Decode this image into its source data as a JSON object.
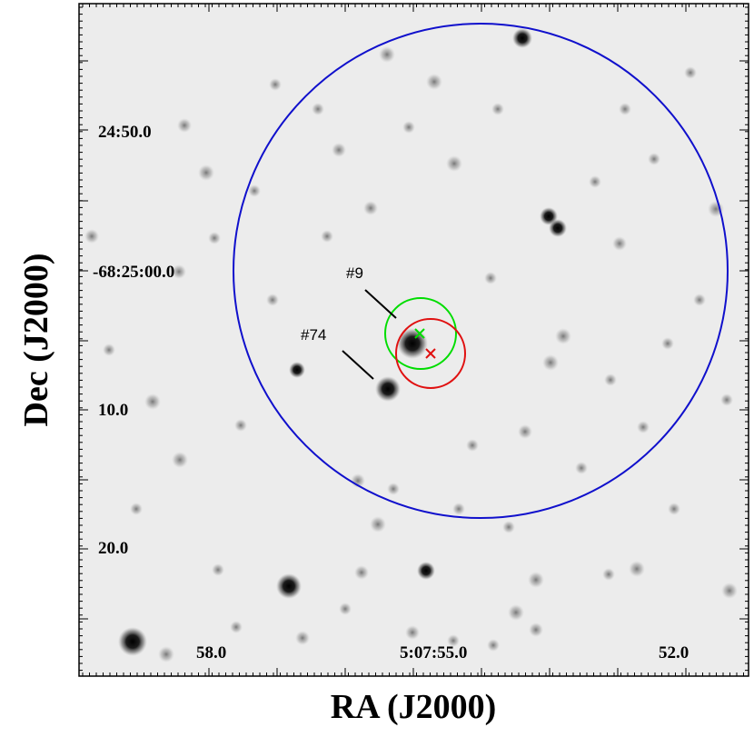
{
  "image": {
    "kind": "astronomical finding chart",
    "colormap": "inverted grayscale",
    "background_color": "#ececec",
    "star_color": "#050505"
  },
  "axes": {
    "x_title": "RA (J2000)",
    "y_title": "Dec (J2000)",
    "x_tick_labels": [
      "58.0",
      "5:07:55.0",
      "52.0"
    ],
    "y_tick_labels": [
      "24:50.0",
      "-68:25:00.0",
      "10.0",
      "20.0"
    ]
  },
  "regions": {
    "large_circle_color": "#1010cc",
    "green_circle_color": "#00dd00",
    "red_circle_color": "#e01010"
  },
  "markers": {
    "green_cross_color": "#00dd00",
    "red_cross_color": "#e01010"
  },
  "sources": [
    {
      "label": "#9"
    },
    {
      "label": "#74"
    }
  ]
}
